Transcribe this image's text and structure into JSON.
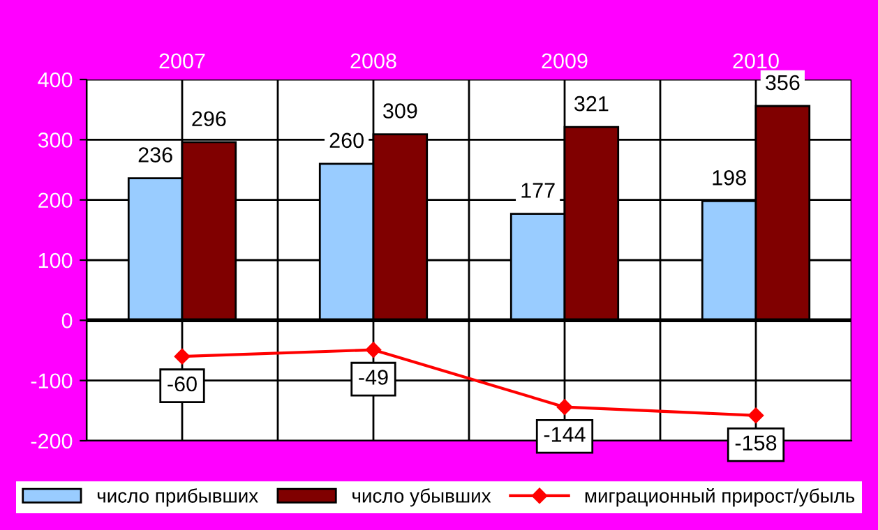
{
  "chart_data": {
    "type": "bar",
    "categories": [
      "2007",
      "2008",
      "2009",
      "2010"
    ],
    "series": [
      {
        "name": "число прибывших",
        "color": "#99ccff",
        "values": [
          236,
          260,
          177,
          198
        ]
      },
      {
        "name": "число убывших",
        "color": "#800000",
        "values": [
          296,
          309,
          321,
          356
        ]
      },
      {
        "name": "миграционный прирост/убыль",
        "type": "line",
        "color": "#ff0000",
        "marker": "diamond",
        "values": [
          -60,
          -49,
          -144,
          -158
        ]
      }
    ],
    "ylim": [
      -200,
      400
    ],
    "yticks": [
      -200,
      -100,
      0,
      100,
      200,
      300,
      400
    ],
    "grid": true,
    "legend": "bottom",
    "data_labels": true
  }
}
